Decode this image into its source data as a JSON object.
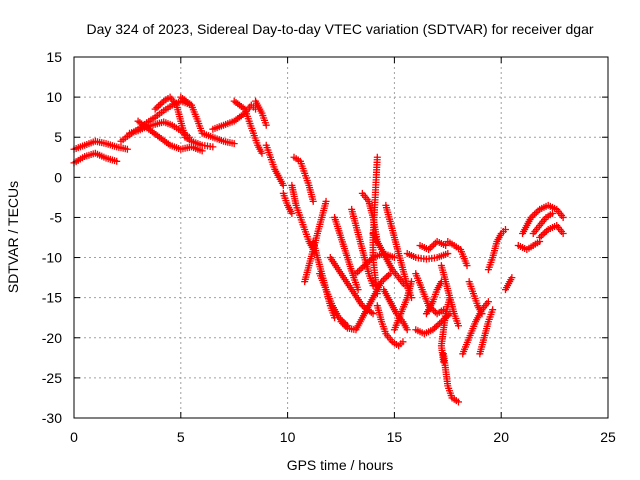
{
  "chart_data": {
    "type": "scatter",
    "title": "Day 324 of 2023, Sidereal Day-to-day VTEC variation (SDTVAR) for receiver dgar",
    "xlabel": "GPS time / hours",
    "ylabel": "SDTVAR / TECUs",
    "xlim": [
      0,
      25
    ],
    "ylim": [
      -30,
      15
    ],
    "xticks": [
      "0",
      "5",
      "10",
      "15",
      "20",
      "25"
    ],
    "yticks": [
      "15",
      "10",
      "5",
      "0",
      "-5",
      "-10",
      "-15",
      "-20",
      "-25",
      "-30"
    ],
    "grid": true,
    "marker": "plus",
    "color": "#ff0000",
    "tracks": [
      [
        [
          0.0,
          1.8
        ],
        [
          0.5,
          2.6
        ],
        [
          1.0,
          3.0
        ],
        [
          1.5,
          2.4
        ],
        [
          2.0,
          2.0
        ]
      ],
      [
        [
          0.0,
          3.5
        ],
        [
          0.5,
          4.0
        ],
        [
          1.0,
          4.5
        ],
        [
          1.5,
          4.2
        ],
        [
          2.0,
          3.8
        ],
        [
          2.5,
          3.5
        ]
      ],
      [
        [
          2.2,
          4.5
        ],
        [
          2.6,
          5.3
        ],
        [
          3.0,
          6.0
        ],
        [
          3.4,
          6.8
        ],
        [
          3.8,
          7.5
        ],
        [
          4.2,
          8.3
        ],
        [
          4.6,
          9.0
        ],
        [
          5.0,
          9.5
        ],
        [
          5.5,
          9.0
        ]
      ],
      [
        [
          2.6,
          5.5
        ],
        [
          3.0,
          5.8
        ],
        [
          3.4,
          6.3
        ],
        [
          3.8,
          6.6
        ],
        [
          4.2,
          6.9
        ],
        [
          4.6,
          6.5
        ],
        [
          5.0,
          5.8
        ],
        [
          5.4,
          5.0
        ]
      ],
      [
        [
          3.8,
          8.5
        ],
        [
          4.2,
          9.5
        ],
        [
          4.5,
          10.0
        ],
        [
          4.8,
          9.0
        ],
        [
          5.0,
          7.0
        ],
        [
          5.2,
          5.0
        ],
        [
          5.5,
          4.5
        ],
        [
          6.0,
          4.0
        ],
        [
          6.5,
          3.8
        ]
      ],
      [
        [
          3.0,
          7.0
        ],
        [
          3.5,
          6.0
        ],
        [
          4.0,
          5.0
        ],
        [
          4.5,
          4.0
        ],
        [
          5.0,
          3.5
        ],
        [
          5.5,
          3.8
        ],
        [
          6.0,
          3.3
        ]
      ],
      [
        [
          5.0,
          10.0
        ],
        [
          5.5,
          9.0
        ],
        [
          5.8,
          7.0
        ],
        [
          6.0,
          5.5
        ],
        [
          6.5,
          5.0
        ],
        [
          7.0,
          4.5
        ],
        [
          7.5,
          4.2
        ]
      ],
      [
        [
          6.5,
          6.0
        ],
        [
          7.0,
          6.5
        ],
        [
          7.5,
          7.0
        ],
        [
          8.0,
          8.0
        ],
        [
          8.3,
          9.0
        ],
        [
          8.5,
          8.5
        ]
      ],
      [
        [
          7.5,
          9.5
        ],
        [
          8.0,
          8.5
        ],
        [
          8.2,
          7.0
        ],
        [
          8.4,
          5.5
        ],
        [
          8.6,
          4.0
        ],
        [
          8.8,
          3.0
        ]
      ],
      [
        [
          8.5,
          9.5
        ],
        [
          8.8,
          8.0
        ],
        [
          9.0,
          6.5
        ]
      ],
      [
        [
          9.0,
          4.0
        ],
        [
          9.2,
          2.5
        ],
        [
          9.4,
          1.0
        ],
        [
          9.6,
          0.0
        ],
        [
          9.8,
          -1.0
        ]
      ],
      [
        [
          10.2,
          -1.0
        ],
        [
          10.4,
          -3.5
        ],
        [
          10.6,
          -5.0
        ],
        [
          10.8,
          -6.5
        ],
        [
          11.0,
          -8.0
        ],
        [
          11.2,
          -9.0
        ]
      ],
      [
        [
          9.8,
          -2.0
        ],
        [
          10.0,
          -3.5
        ],
        [
          10.2,
          -4.5
        ]
      ],
      [
        [
          10.3,
          2.5
        ],
        [
          10.6,
          2.0
        ],
        [
          10.8,
          0.5
        ],
        [
          11.0,
          -1.0
        ],
        [
          11.2,
          -3.0
        ]
      ],
      [
        [
          10.8,
          -13.0
        ],
        [
          11.0,
          -11.0
        ],
        [
          11.2,
          -9.0
        ],
        [
          11.4,
          -7.0
        ],
        [
          11.6,
          -5.0
        ],
        [
          11.8,
          -3.0
        ]
      ],
      [
        [
          11.2,
          -8.0
        ],
        [
          11.4,
          -10.0
        ],
        [
          11.6,
          -12.0
        ],
        [
          11.8,
          -14.0
        ],
        [
          12.0,
          -16.0
        ],
        [
          12.2,
          -17.5
        ]
      ],
      [
        [
          11.5,
          -12.0
        ],
        [
          11.8,
          -14.0
        ],
        [
          12.1,
          -16.0
        ],
        [
          12.4,
          -17.5
        ],
        [
          12.8,
          -18.5
        ]
      ],
      [
        [
          12.2,
          -5.0
        ],
        [
          12.5,
          -7.5
        ],
        [
          12.8,
          -10.0
        ],
        [
          13.1,
          -12.5
        ],
        [
          13.3,
          -14.0
        ]
      ],
      [
        [
          12.0,
          -10.0
        ],
        [
          12.5,
          -12.0
        ],
        [
          13.0,
          -14.0
        ],
        [
          13.5,
          -16.0
        ],
        [
          14.0,
          -17.0
        ]
      ],
      [
        [
          12.5,
          -18.0
        ],
        [
          12.8,
          -18.8
        ],
        [
          13.2,
          -19.0
        ],
        [
          13.6,
          -17.0
        ],
        [
          14.0,
          -15.0
        ],
        [
          14.4,
          -13.0
        ],
        [
          14.8,
          -12.0
        ]
      ],
      [
        [
          13.0,
          -4.0
        ],
        [
          13.2,
          -6.0
        ],
        [
          13.4,
          -8.0
        ],
        [
          13.6,
          -10.0
        ],
        [
          13.8,
          -12.0
        ],
        [
          14.0,
          -13.5
        ]
      ],
      [
        [
          13.2,
          -12.0
        ],
        [
          13.6,
          -11.0
        ],
        [
          14.0,
          -10.0
        ],
        [
          14.5,
          -9.5
        ],
        [
          15.0,
          -10.0
        ]
      ],
      [
        [
          13.5,
          -2.0
        ],
        [
          13.8,
          -3.0
        ],
        [
          14.0,
          -5.0
        ],
        [
          14.2,
          -8.0
        ]
      ],
      [
        [
          14.2,
          2.5
        ],
        [
          14.15,
          0.0
        ],
        [
          14.1,
          -2.5
        ],
        [
          14.05,
          -5.0
        ],
        [
          14.0,
          -7.5
        ],
        [
          14.0,
          -10.0
        ],
        [
          14.1,
          -12.5
        ],
        [
          14.2,
          -14.5
        ]
      ],
      [
        [
          14.0,
          -7.0
        ],
        [
          14.3,
          -8.5
        ],
        [
          14.6,
          -10.0
        ],
        [
          14.9,
          -11.5
        ],
        [
          15.2,
          -12.5
        ],
        [
          15.5,
          -13.5
        ]
      ],
      [
        [
          14.2,
          -16.0
        ],
        [
          14.4,
          -18.0
        ],
        [
          14.6,
          -19.5
        ],
        [
          14.9,
          -20.5
        ],
        [
          15.2,
          -21.0
        ],
        [
          15.4,
          -20.5
        ]
      ],
      [
        [
          14.5,
          -14.0
        ],
        [
          14.8,
          -15.5
        ],
        [
          15.1,
          -17.0
        ],
        [
          15.4,
          -18.0
        ],
        [
          15.6,
          -19.0
        ]
      ],
      [
        [
          14.6,
          -3.5
        ],
        [
          14.8,
          -5.5
        ],
        [
          15.0,
          -7.5
        ],
        [
          15.2,
          -9.5
        ],
        [
          15.4,
          -11.5
        ],
        [
          15.6,
          -13.5
        ],
        [
          15.8,
          -15.0
        ]
      ],
      [
        [
          15.0,
          -19.0
        ],
        [
          15.3,
          -17.0
        ],
        [
          15.6,
          -15.0
        ],
        [
          15.8,
          -13.0
        ]
      ],
      [
        [
          15.6,
          -9.5
        ],
        [
          16.0,
          -10.0
        ],
        [
          16.5,
          -10.2
        ],
        [
          17.0,
          -10.0
        ],
        [
          17.5,
          -9.5
        ]
      ],
      [
        [
          16.0,
          -12.0
        ],
        [
          16.3,
          -14.0
        ],
        [
          16.6,
          -16.0
        ],
        [
          17.0,
          -17.0
        ],
        [
          17.3,
          -16.5
        ]
      ],
      [
        [
          16.0,
          -19.0
        ],
        [
          16.4,
          -19.5
        ],
        [
          16.8,
          -19.0
        ],
        [
          17.2,
          -18.0
        ],
        [
          17.6,
          -17.0
        ]
      ],
      [
        [
          16.5,
          -17.0
        ],
        [
          16.8,
          -15.5
        ],
        [
          17.0,
          -14.0
        ],
        [
          17.2,
          -13.0
        ]
      ],
      [
        [
          16.2,
          -8.5
        ],
        [
          16.6,
          -9.0
        ],
        [
          17.0,
          -8.0
        ],
        [
          17.4,
          -8.5
        ]
      ],
      [
        [
          17.5,
          -8.0
        ],
        [
          17.8,
          -8.5
        ],
        [
          18.1,
          -9.0
        ],
        [
          18.4,
          -11.0
        ]
      ],
      [
        [
          17.2,
          -11.0
        ],
        [
          17.4,
          -13.0
        ],
        [
          17.6,
          -15.0
        ],
        [
          17.8,
          -17.0
        ],
        [
          18.0,
          -18.5
        ]
      ],
      [
        [
          17.3,
          -22.0
        ],
        [
          17.4,
          -24.0
        ],
        [
          17.5,
          -26.0
        ],
        [
          17.7,
          -27.5
        ],
        [
          18.0,
          -28.0
        ]
      ],
      [
        [
          17.6,
          -15.0
        ],
        [
          17.4,
          -17.0
        ],
        [
          17.3,
          -19.0
        ],
        [
          17.2,
          -21.0
        ],
        [
          17.3,
          -23.0
        ]
      ],
      [
        [
          18.5,
          -13.0
        ],
        [
          18.7,
          -14.5
        ],
        [
          18.9,
          -16.0
        ],
        [
          19.1,
          -17.0
        ]
      ],
      [
        [
          18.2,
          -22.0
        ],
        [
          18.5,
          -20.0
        ],
        [
          18.8,
          -18.0
        ],
        [
          19.1,
          -16.5
        ],
        [
          19.4,
          -15.5
        ]
      ],
      [
        [
          19.0,
          -22.0
        ],
        [
          19.2,
          -20.0
        ],
        [
          19.4,
          -18.0
        ],
        [
          19.6,
          -16.5
        ]
      ],
      [
        [
          19.4,
          -11.5
        ],
        [
          19.6,
          -10.0
        ],
        [
          19.8,
          -8.0
        ],
        [
          20.0,
          -7.0
        ],
        [
          20.2,
          -6.5
        ]
      ],
      [
        [
          20.2,
          -14.0
        ],
        [
          20.4,
          -13.0
        ],
        [
          20.5,
          -12.5
        ]
      ],
      [
        [
          20.8,
          -8.5
        ],
        [
          21.2,
          -9.0
        ],
        [
          21.5,
          -8.5
        ],
        [
          21.8,
          -8.0
        ]
      ],
      [
        [
          21.0,
          -7.0
        ],
        [
          21.4,
          -5.0
        ],
        [
          21.8,
          -4.0
        ],
        [
          22.2,
          -3.5
        ],
        [
          22.6,
          -4.0
        ],
        [
          22.9,
          -5.0
        ]
      ],
      [
        [
          21.5,
          -7.0
        ],
        [
          21.8,
          -6.0
        ],
        [
          22.1,
          -5.0
        ],
        [
          22.4,
          -4.5
        ]
      ],
      [
        [
          21.8,
          -7.5
        ],
        [
          22.2,
          -6.5
        ],
        [
          22.6,
          -6.0
        ],
        [
          22.9,
          -7.0
        ]
      ]
    ]
  }
}
